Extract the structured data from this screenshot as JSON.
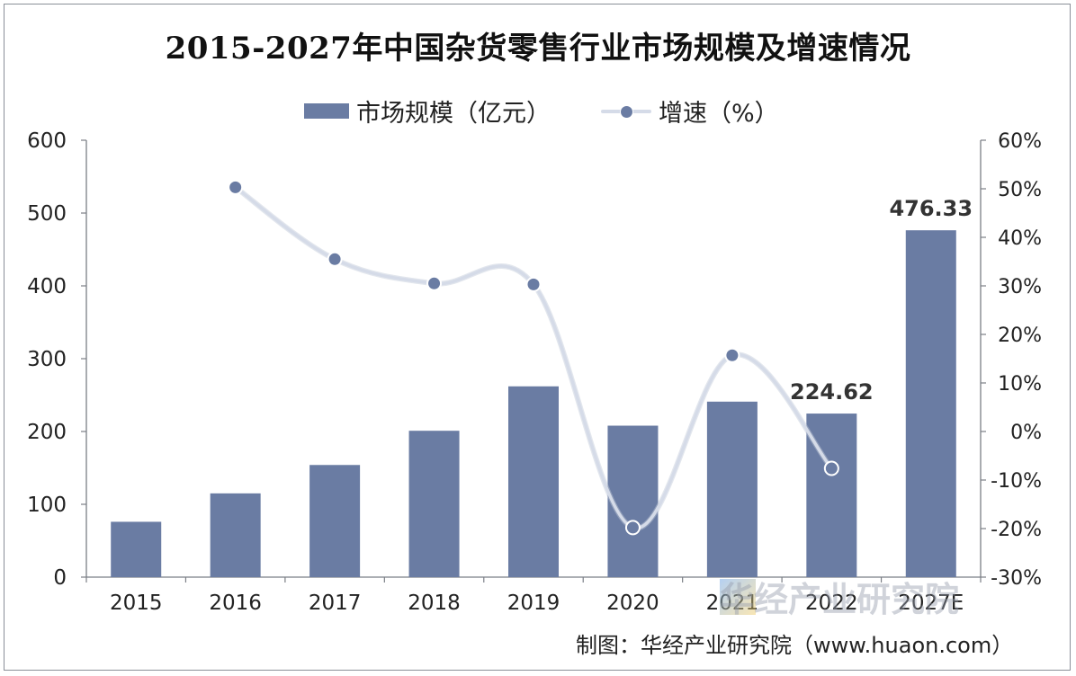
{
  "chart_data": {
    "type": "bar+line",
    "title": "2015-2027年中国杂货零售行业市场规模及增速情况",
    "categories": [
      "2015",
      "2016",
      "2017",
      "2018",
      "2019",
      "2020",
      "2021",
      "2022",
      "2027E"
    ],
    "series": [
      {
        "name": "市场规模（亿元）",
        "type": "bar",
        "axis": "left",
        "values": [
          76,
          115,
          154,
          201,
          262,
          208,
          241,
          224.62,
          476.33
        ],
        "labels": [
          "",
          "",
          "",
          "",
          "",
          "",
          "",
          "224.62",
          "476.33"
        ]
      },
      {
        "name": "增速（%）",
        "type": "line",
        "axis": "right",
        "values": [
          null,
          50.3,
          35.5,
          30.5,
          30.3,
          -19.8,
          15.7,
          -7.6,
          null
        ]
      }
    ],
    "left_axis": {
      "ylim": [
        0,
        600
      ],
      "ticks": [
        "0",
        "100",
        "200",
        "300",
        "400",
        "500",
        "600"
      ]
    },
    "right_axis": {
      "ylim": [
        -30,
        60
      ],
      "ticks": [
        "-30%",
        "-20%",
        "-10%",
        "0%",
        "10%",
        "20%",
        "30%",
        "40%",
        "50%",
        "60%"
      ]
    },
    "legend_position": "top",
    "grid": false,
    "colors": {
      "bar": "#6a7ca3",
      "line": "#d5dbe8",
      "marker": "#6a7ca3"
    }
  },
  "source": "制图：华经产业研究院（www.huaon.com）",
  "watermark": "华经产业研究院"
}
